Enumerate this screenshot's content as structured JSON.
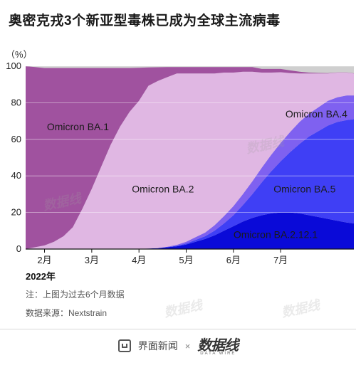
{
  "title": "奥密克戎3个新亚型毒株已成为全球主流病毒",
  "unit": "（%）",
  "year_label": "2022年",
  "note": "注：上图为过去6个月数据",
  "source": "数据来源：Nextstrain",
  "footer": {
    "brand1": "界面新闻",
    "times": "×",
    "brand2": "数据线",
    "brand2_sub": "DATA WIRE"
  },
  "watermark": "数据线",
  "chart_data": {
    "type": "area",
    "stacked": true,
    "title": "奥密克戎3个新亚型毒株已成为全球主流病毒",
    "ylabel": "（%）",
    "ylim": [
      0,
      100
    ],
    "yticks": [
      0,
      20,
      40,
      60,
      80,
      100
    ],
    "xlim": [
      0.6,
      7.55
    ],
    "xticks": [
      {
        "value": 1,
        "label": "2月"
      },
      {
        "value": 2,
        "label": "3月"
      },
      {
        "value": 3,
        "label": "4月"
      },
      {
        "value": 4,
        "label": "5月"
      },
      {
        "value": 5,
        "label": "6月"
      },
      {
        "value": 6,
        "label": "7月"
      }
    ],
    "x": [
      0.6,
      0.8,
      1.0,
      1.2,
      1.4,
      1.6,
      1.8,
      2.0,
      2.2,
      2.4,
      2.6,
      2.8,
      3.0,
      3.2,
      3.4,
      3.6,
      3.8,
      4.0,
      4.2,
      4.4,
      4.6,
      4.8,
      5.0,
      5.2,
      5.4,
      5.6,
      5.8,
      6.0,
      6.2,
      6.4,
      6.6,
      6.8,
      7.0,
      7.2,
      7.4,
      7.55
    ],
    "series": [
      {
        "name": "Omicron BA.2.12.1",
        "color": "#0a0ad8",
        "values": [
          0,
          0,
          0,
          0,
          0,
          0,
          0,
          0,
          0,
          0,
          0,
          0,
          0.1,
          0.3,
          0.5,
          1,
          1.5,
          2.5,
          4,
          5.5,
          7.5,
          10,
          12.5,
          15,
          17,
          18.5,
          19.5,
          20,
          20,
          19.5,
          18.5,
          17.5,
          16.5,
          15.5,
          14.5,
          14
        ]
      },
      {
        "name": "Omicron BA.5",
        "color": "#3f3ff5",
        "values": [
          0,
          0,
          0,
          0,
          0,
          0,
          0,
          0,
          0,
          0,
          0,
          0,
          0,
          0,
          0,
          0.1,
          0.3,
          0.5,
          1,
          1.5,
          2.5,
          4,
          6,
          9,
          13,
          18,
          23,
          28,
          33,
          38,
          43,
          47,
          51,
          54,
          56,
          57
        ]
      },
      {
        "name": "Omicron BA.4",
        "color": "#7f61f0",
        "values": [
          0,
          0,
          0,
          0,
          0,
          0,
          0,
          0,
          0,
          0,
          0,
          0,
          0,
          0,
          0,
          0.2,
          0.5,
          1,
          1.5,
          2,
          3,
          4,
          5,
          6,
          7,
          8,
          9,
          10,
          11,
          12,
          12.5,
          13,
          13.5,
          13.5,
          13.5,
          13
        ]
      },
      {
        "name": "Omicron BA.2",
        "color": "#e0b7e3",
        "values": [
          0,
          1,
          2,
          4,
          7,
          12,
          22,
          33,
          45,
          57,
          67,
          75,
          81,
          89,
          91.4,
          92.7,
          93.7,
          92,
          89.5,
          87,
          83,
          78.5,
          73,
          67,
          60,
          52,
          45,
          38.7,
          32.2,
          26.5,
          22,
          18.5,
          15,
          13.5,
          12.5,
          12
        ]
      },
      {
        "name": "Omicron BA.1",
        "color": "#a0529f",
        "values": [
          100,
          98.5,
          97,
          95,
          92,
          87,
          77,
          66,
          54,
          42,
          32,
          24,
          18,
          10,
          7.5,
          5.5,
          3.5,
          3.5,
          3.5,
          3.5,
          3.5,
          3,
          3,
          2.5,
          2.5,
          2,
          2,
          1.8,
          1.5,
          1,
          0.5,
          0.3,
          0.2,
          0.1,
          0.1,
          0.1
        ]
      }
    ],
    "labels": [
      {
        "text": "Omicron BA.1",
        "series": "Omicron BA.1",
        "x": 1.05,
        "y": 65,
        "color": "#1a1a1a"
      },
      {
        "text": "Omicron BA.2",
        "series": "Omicron BA.2",
        "x": 2.85,
        "y": 31,
        "color": "#1a1a1a"
      },
      {
        "text": "Omicron BA.4",
        "series": "Omicron BA.4",
        "x": 6.1,
        "y": 72,
        "color": "#1a1a1a"
      },
      {
        "text": "Omicron BA.5",
        "series": "Omicron BA.5",
        "x": 5.85,
        "y": 31,
        "color": "#1a1a1a"
      },
      {
        "text": "Omicron BA.2.12.1",
        "series": "Omicron BA.2.12.1",
        "x": 5.0,
        "y": 6,
        "color": "#1a1a1a"
      }
    ],
    "top_band_color": "#cfcfcf",
    "background_color": "#efefef",
    "grid": true
  }
}
